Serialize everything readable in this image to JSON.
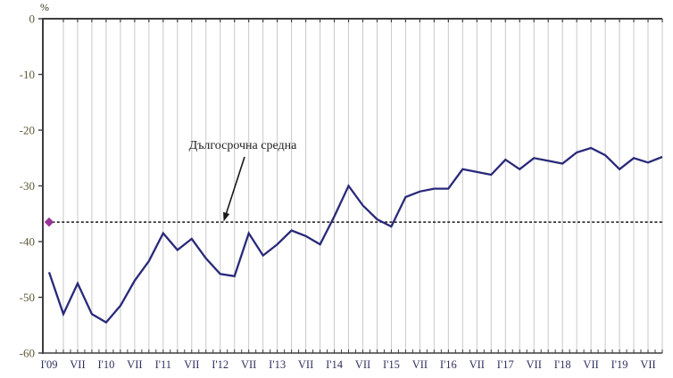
{
  "chart_data": {
    "type": "line",
    "title": "",
    "ylabel": "%",
    "xlabel": "",
    "ylim": [
      -60,
      0
    ],
    "yticks": [
      0,
      -10,
      -20,
      -30,
      -40,
      -50,
      -60
    ],
    "ytick_labels": [
      "0",
      "-10",
      "-20",
      "-30",
      "-40",
      "-50",
      "-60"
    ],
    "x_axis_labels": [
      "I'09",
      "VII",
      "I'10",
      "VII",
      "I'11",
      "VII",
      "I'12",
      "VII",
      "I'13",
      "VII",
      "I'14",
      "VII",
      "I'15",
      "VII",
      "I'16",
      "VII",
      "I'17",
      "VII",
      "I'18",
      "VII",
      "I'19",
      "VII"
    ],
    "frequency": "quarterly",
    "x_range_note": "quarterly points from 2009-Q1 to 2019-Q4, axis labels every 2nd point (January and July)",
    "values": [
      -45.5,
      -53,
      -47.5,
      -53,
      -54.5,
      -51.5,
      -47,
      -43.5,
      -38.5,
      -41.5,
      -39.5,
      -43,
      -45.8,
      -46.2,
      -38.5,
      -42.5,
      -40.5,
      -38,
      -39,
      -40.5,
      -35.5,
      -30,
      -33.5,
      -36,
      -37.3,
      -32,
      -31,
      -30.5,
      -30.5,
      -27,
      -27.5,
      -28,
      -25.3,
      -27,
      -25,
      -25.5,
      -26,
      -24,
      -23.2,
      -24.5,
      -27,
      -25,
      -25.8,
      -24.8
    ],
    "average_line": {
      "value": -36.5
    },
    "annotation": {
      "text": "Дългосрочна средна"
    },
    "grid": "vertical gridlines at every quarterly point",
    "legend": "none",
    "colors": {
      "series": "#29297a",
      "average": "#151515",
      "average_marker": "#993399",
      "grid": "#c9c9c9",
      "axis": "#3d3d3d",
      "x_label": "#2f2f5f",
      "y_label": "#5f5836",
      "annotation_text": "#222222"
    }
  }
}
